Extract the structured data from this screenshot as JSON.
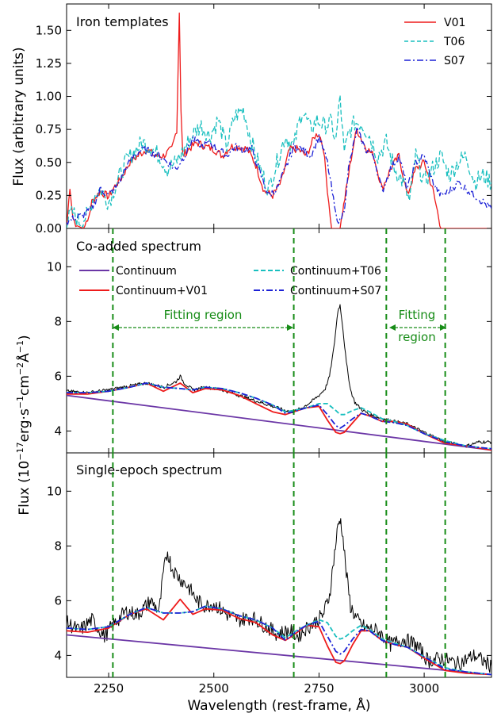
{
  "colors": {
    "v01": "#ee1b1b",
    "t06": "#19bfbf",
    "s07": "#1c21d6",
    "continuum": "#6b36a6",
    "observed": "#000000",
    "fit_region_lines": "#178c17"
  },
  "chart_data": [
    {
      "type": "line",
      "panel": "top",
      "title": "Iron templates",
      "ylabel": "Flux (arbitrary units)",
      "xlim": [
        2150,
        3160
      ],
      "ylim": [
        0,
        1.7
      ],
      "yticks": [
        0.0,
        0.25,
        0.5,
        0.75,
        1.0,
        1.25,
        1.5
      ],
      "ytick_labels": [
        "0.00",
        "0.25",
        "0.50",
        "0.75",
        "1.00",
        "1.25",
        "1.50"
      ],
      "legend_position": "top-right",
      "series": [
        {
          "name": "V01",
          "style": "solid",
          "x": [
            2150,
            2158,
            2165,
            2175,
            2190,
            2200,
            2210,
            2230,
            2250,
            2265,
            2280,
            2300,
            2320,
            2340,
            2360,
            2380,
            2400,
            2412,
            2418,
            2422,
            2426,
            2440,
            2460,
            2480,
            2500,
            2520,
            2540,
            2560,
            2580,
            2600,
            2620,
            2640,
            2660,
            2680,
            2700,
            2720,
            2740,
            2750,
            2760,
            2770,
            2780,
            2800,
            2820,
            2830,
            2840,
            2860,
            2880,
            2900,
            2920,
            2940,
            2960,
            2980,
            3000,
            3020,
            3040,
            3060,
            3080,
            3100,
            3120,
            3140,
            3160
          ],
          "y": [
            0.0,
            0.32,
            0.08,
            0.02,
            0.0,
            0.05,
            0.2,
            0.28,
            0.24,
            0.32,
            0.38,
            0.5,
            0.55,
            0.6,
            0.55,
            0.55,
            0.6,
            0.75,
            1.64,
            0.9,
            0.55,
            0.6,
            0.65,
            0.62,
            0.6,
            0.55,
            0.62,
            0.62,
            0.6,
            0.48,
            0.28,
            0.25,
            0.35,
            0.6,
            0.6,
            0.55,
            0.7,
            0.72,
            0.62,
            0.3,
            0.0,
            0.0,
            0.4,
            0.6,
            0.75,
            0.62,
            0.55,
            0.3,
            0.45,
            0.55,
            0.25,
            0.45,
            0.5,
            0.3,
            0.0,
            0.0,
            0.0,
            0.0,
            0.0,
            0.0,
            0.0
          ]
        },
        {
          "name": "T06",
          "style": "dashed",
          "x": [
            2150,
            2165,
            2180,
            2200,
            2215,
            2230,
            2250,
            2270,
            2290,
            2310,
            2330,
            2350,
            2370,
            2390,
            2410,
            2430,
            2450,
            2470,
            2490,
            2510,
            2530,
            2550,
            2570,
            2590,
            2610,
            2630,
            2650,
            2670,
            2690,
            2710,
            2730,
            2745,
            2760,
            2780,
            2790,
            2800,
            2810,
            2820,
            2835,
            2850,
            2870,
            2890,
            2910,
            2930,
            2950,
            2965,
            2980,
            3000,
            3020,
            3040,
            3060,
            3080,
            3100,
            3120,
            3140,
            3160
          ],
          "y": [
            0.05,
            0.12,
            0.05,
            0.1,
            0.25,
            0.3,
            0.2,
            0.35,
            0.5,
            0.58,
            0.65,
            0.62,
            0.55,
            0.45,
            0.5,
            0.6,
            0.72,
            0.78,
            0.7,
            0.82,
            0.62,
            0.85,
            0.9,
            0.65,
            0.45,
            0.3,
            0.5,
            0.7,
            0.62,
            0.9,
            0.75,
            0.82,
            0.78,
            0.8,
            0.65,
            1.0,
            0.55,
            0.72,
            0.8,
            0.8,
            0.7,
            0.55,
            0.65,
            0.45,
            0.35,
            0.2,
            0.55,
            0.35,
            0.45,
            0.55,
            0.4,
            0.5,
            0.55,
            0.35,
            0.4,
            0.35
          ]
        },
        {
          "name": "S07",
          "style": "dashdot",
          "x": [
            2150,
            2170,
            2190,
            2210,
            2230,
            2250,
            2270,
            2290,
            2310,
            2330,
            2350,
            2370,
            2390,
            2410,
            2430,
            2450,
            2470,
            2490,
            2510,
            2530,
            2550,
            2570,
            2590,
            2610,
            2630,
            2650,
            2670,
            2690,
            2710,
            2730,
            2750,
            2770,
            2790,
            2800,
            2810,
            2820,
            2840,
            2860,
            2880,
            2900,
            2920,
            2940,
            2960,
            2980,
            3000,
            3020,
            3040,
            3060,
            3080,
            3100,
            3120,
            3140,
            3160
          ],
          "y": [
            0.05,
            0.08,
            0.1,
            0.15,
            0.3,
            0.25,
            0.32,
            0.45,
            0.55,
            0.6,
            0.58,
            0.55,
            0.5,
            0.45,
            0.55,
            0.68,
            0.62,
            0.65,
            0.6,
            0.55,
            0.62,
            0.6,
            0.6,
            0.42,
            0.25,
            0.3,
            0.45,
            0.62,
            0.6,
            0.55,
            0.7,
            0.5,
            0.1,
            0.05,
            0.15,
            0.45,
            0.75,
            0.6,
            0.55,
            0.28,
            0.45,
            0.55,
            0.3,
            0.5,
            0.55,
            0.35,
            0.25,
            0.28,
            0.35,
            0.3,
            0.25,
            0.2,
            0.15
          ]
        }
      ]
    },
    {
      "type": "line",
      "panel": "middle",
      "title": "Co-added spectrum",
      "ylim": [
        3.2,
        11.4
      ],
      "yticks": [
        4,
        6,
        8,
        10
      ],
      "ytick_labels": [
        "4",
        "6",
        "8",
        "10"
      ],
      "fitting_region_lines_x": [
        2260,
        2690,
        2910,
        3050
      ],
      "annotations": [
        "Fitting region",
        "Fitting",
        "region"
      ],
      "legend_position": "top",
      "series": [
        {
          "name": "Continuum",
          "style": "solid",
          "x": [
            2150,
            3160
          ],
          "y": [
            5.3,
            3.3
          ]
        },
        {
          "name": "Continuum+V01",
          "style": "solid",
          "x": [
            2150,
            2200,
            2250,
            2300,
            2340,
            2380,
            2420,
            2450,
            2480,
            2520,
            2560,
            2600,
            2640,
            2670,
            2690,
            2720,
            2750,
            2770,
            2790,
            2800,
            2810,
            2830,
            2850,
            2870,
            2900,
            2930,
            2960,
            3000,
            3050,
            3100,
            3160
          ],
          "y": [
            5.35,
            5.35,
            5.45,
            5.6,
            5.75,
            5.45,
            5.75,
            5.4,
            5.55,
            5.5,
            5.3,
            5.0,
            4.7,
            4.6,
            4.7,
            4.85,
            4.9,
            4.4,
            3.95,
            3.9,
            3.95,
            4.3,
            4.65,
            4.55,
            4.35,
            4.35,
            4.25,
            3.9,
            3.55,
            3.45,
            3.3
          ]
        },
        {
          "name": "Continuum+T06",
          "style": "dashed",
          "x": [
            2150,
            2200,
            2250,
            2300,
            2340,
            2380,
            2420,
            2450,
            2480,
            2520,
            2560,
            2600,
            2640,
            2670,
            2690,
            2720,
            2750,
            2770,
            2790,
            2800,
            2810,
            2830,
            2850,
            2870,
            2900,
            2930,
            2960,
            3000,
            3050,
            3100,
            3160
          ],
          "y": [
            5.4,
            5.4,
            5.45,
            5.6,
            5.75,
            5.6,
            5.55,
            5.5,
            5.6,
            5.55,
            5.4,
            5.2,
            4.95,
            4.7,
            4.75,
            4.85,
            5.0,
            5.0,
            4.75,
            4.6,
            4.6,
            4.75,
            4.85,
            4.7,
            4.45,
            4.35,
            4.2,
            3.9,
            3.65,
            3.45,
            3.35
          ]
        },
        {
          "name": "Continuum+S07",
          "style": "dashdot",
          "x": [
            2150,
            2200,
            2250,
            2300,
            2340,
            2380,
            2420,
            2450,
            2480,
            2520,
            2560,
            2600,
            2640,
            2670,
            2690,
            2720,
            2750,
            2770,
            2790,
            2800,
            2810,
            2830,
            2850,
            2870,
            2900,
            2930,
            2960,
            3000,
            3050,
            3100,
            3160
          ],
          "y": [
            5.4,
            5.4,
            5.45,
            5.6,
            5.75,
            5.6,
            5.55,
            5.5,
            5.6,
            5.55,
            5.4,
            5.2,
            4.95,
            4.65,
            4.7,
            4.85,
            4.95,
            4.6,
            4.2,
            4.1,
            4.2,
            4.45,
            4.65,
            4.55,
            4.35,
            4.3,
            4.2,
            3.9,
            3.6,
            3.45,
            3.35
          ]
        },
        {
          "name": "",
          "style": "observed",
          "role": "observed co-added spectrum",
          "x": [
            2150,
            2200,
            2250,
            2300,
            2340,
            2380,
            2410,
            2420,
            2430,
            2450,
            2480,
            2520,
            2560,
            2600,
            2640,
            2670,
            2690,
            2710,
            2730,
            2750,
            2765,
            2775,
            2785,
            2795,
            2800,
            2805,
            2815,
            2825,
            2835,
            2850,
            2870,
            2900,
            2930,
            2960,
            3000,
            3050,
            3100,
            3130,
            3160
          ],
          "y": [
            5.45,
            5.4,
            5.5,
            5.65,
            5.75,
            5.6,
            5.8,
            6.0,
            5.75,
            5.5,
            5.6,
            5.5,
            5.3,
            5.1,
            4.9,
            4.75,
            4.7,
            4.85,
            5.05,
            5.3,
            5.55,
            6.0,
            7.0,
            8.4,
            8.6,
            8.0,
            6.5,
            5.5,
            5.05,
            4.8,
            4.6,
            4.45,
            4.35,
            4.25,
            3.95,
            3.6,
            3.45,
            3.6,
            3.6
          ]
        }
      ]
    },
    {
      "type": "line",
      "panel": "bottom",
      "title": "Single-epoch spectrum",
      "xlabel": "Wavelength (rest-frame, Å)",
      "ylim": [
        3.2,
        11.4
      ],
      "yticks": [
        4,
        6,
        8,
        10
      ],
      "ytick_labels": [
        "4",
        "6",
        "8",
        "10"
      ],
      "xticks": [
        2250,
        2500,
        2750,
        3000
      ],
      "xtick_labels": [
        "2250",
        "2500",
        "2750",
        "3000"
      ],
      "fitting_region_lines_x": [
        2260,
        2690,
        2910,
        3050
      ],
      "series": [
        {
          "name": "Continuum",
          "style": "solid",
          "x": [
            2150,
            3160
          ],
          "y": [
            4.75,
            3.3
          ]
        },
        {
          "name": "Continuum+V01",
          "style": "solid",
          "x": [
            2150,
            2200,
            2250,
            2300,
            2340,
            2380,
            2420,
            2450,
            2480,
            2520,
            2560,
            2600,
            2640,
            2670,
            2690,
            2720,
            2750,
            2770,
            2790,
            2800,
            2810,
            2830,
            2850,
            2870,
            2900,
            2930,
            2960,
            3000,
            3050,
            3100,
            3160
          ],
          "y": [
            4.9,
            4.85,
            5.0,
            5.5,
            5.7,
            5.3,
            6.05,
            5.5,
            5.7,
            5.65,
            5.35,
            5.2,
            4.75,
            4.55,
            4.75,
            5.1,
            5.05,
            4.35,
            3.75,
            3.7,
            3.8,
            4.4,
            4.9,
            4.9,
            4.55,
            4.4,
            4.3,
            3.9,
            3.45,
            3.35,
            3.3
          ]
        },
        {
          "name": "Continuum+T06",
          "style": "dashed",
          "x": [
            2150,
            2200,
            2250,
            2300,
            2340,
            2380,
            2420,
            2450,
            2480,
            2520,
            2560,
            2600,
            2640,
            2670,
            2690,
            2720,
            2750,
            2770,
            2790,
            2800,
            2810,
            2830,
            2850,
            2870,
            2900,
            2930,
            2960,
            3000,
            3050,
            3100,
            3160
          ],
          "y": [
            5.0,
            4.95,
            5.05,
            5.5,
            5.75,
            5.55,
            5.55,
            5.6,
            5.8,
            5.7,
            5.45,
            5.3,
            5.0,
            4.65,
            4.85,
            5.1,
            5.3,
            5.2,
            4.7,
            4.6,
            4.65,
            4.9,
            5.1,
            4.95,
            4.6,
            4.45,
            4.3,
            3.95,
            3.55,
            3.4,
            3.3
          ]
        },
        {
          "name": "Continuum+S07",
          "style": "dashdot",
          "x": [
            2150,
            2200,
            2250,
            2300,
            2340,
            2380,
            2420,
            2450,
            2480,
            2520,
            2560,
            2600,
            2640,
            2670,
            2690,
            2720,
            2750,
            2770,
            2790,
            2800,
            2810,
            2830,
            2850,
            2870,
            2900,
            2930,
            2960,
            3000,
            3050,
            3100,
            3160
          ],
          "y": [
            5.0,
            4.95,
            5.05,
            5.5,
            5.75,
            5.55,
            5.55,
            5.6,
            5.8,
            5.7,
            5.45,
            5.3,
            5.0,
            4.55,
            4.8,
            5.1,
            5.25,
            4.7,
            4.15,
            4.05,
            4.15,
            4.6,
            4.95,
            4.9,
            4.55,
            4.4,
            4.3,
            3.95,
            3.5,
            3.4,
            3.3
          ]
        },
        {
          "name": "",
          "style": "observed",
          "role": "observed single-epoch spectrum",
          "x": [
            2150,
            2180,
            2210,
            2240,
            2260,
            2290,
            2320,
            2350,
            2370,
            2380,
            2390,
            2400,
            2420,
            2440,
            2460,
            2480,
            2500,
            2530,
            2560,
            2590,
            2620,
            2650,
            2680,
            2700,
            2720,
            2740,
            2760,
            2775,
            2785,
            2795,
            2800,
            2805,
            2815,
            2825,
            2840,
            2860,
            2890,
            2920,
            2950,
            2980,
            3010,
            3040,
            3080,
            3120,
            3160
          ],
          "y": [
            5.2,
            4.9,
            5.3,
            4.7,
            5.1,
            5.6,
            5.5,
            6.0,
            5.6,
            7.0,
            7.8,
            7.2,
            6.8,
            6.5,
            6.0,
            5.8,
            5.9,
            5.5,
            5.3,
            5.4,
            5.1,
            4.8,
            4.9,
            4.7,
            5.0,
            5.2,
            5.5,
            6.2,
            7.5,
            8.7,
            9.0,
            8.6,
            7.0,
            5.8,
            5.3,
            5.0,
            4.9,
            4.4,
            4.6,
            4.4,
            3.8,
            3.9,
            3.7,
            4.0,
            3.6
          ]
        }
      ]
    }
  ]
}
